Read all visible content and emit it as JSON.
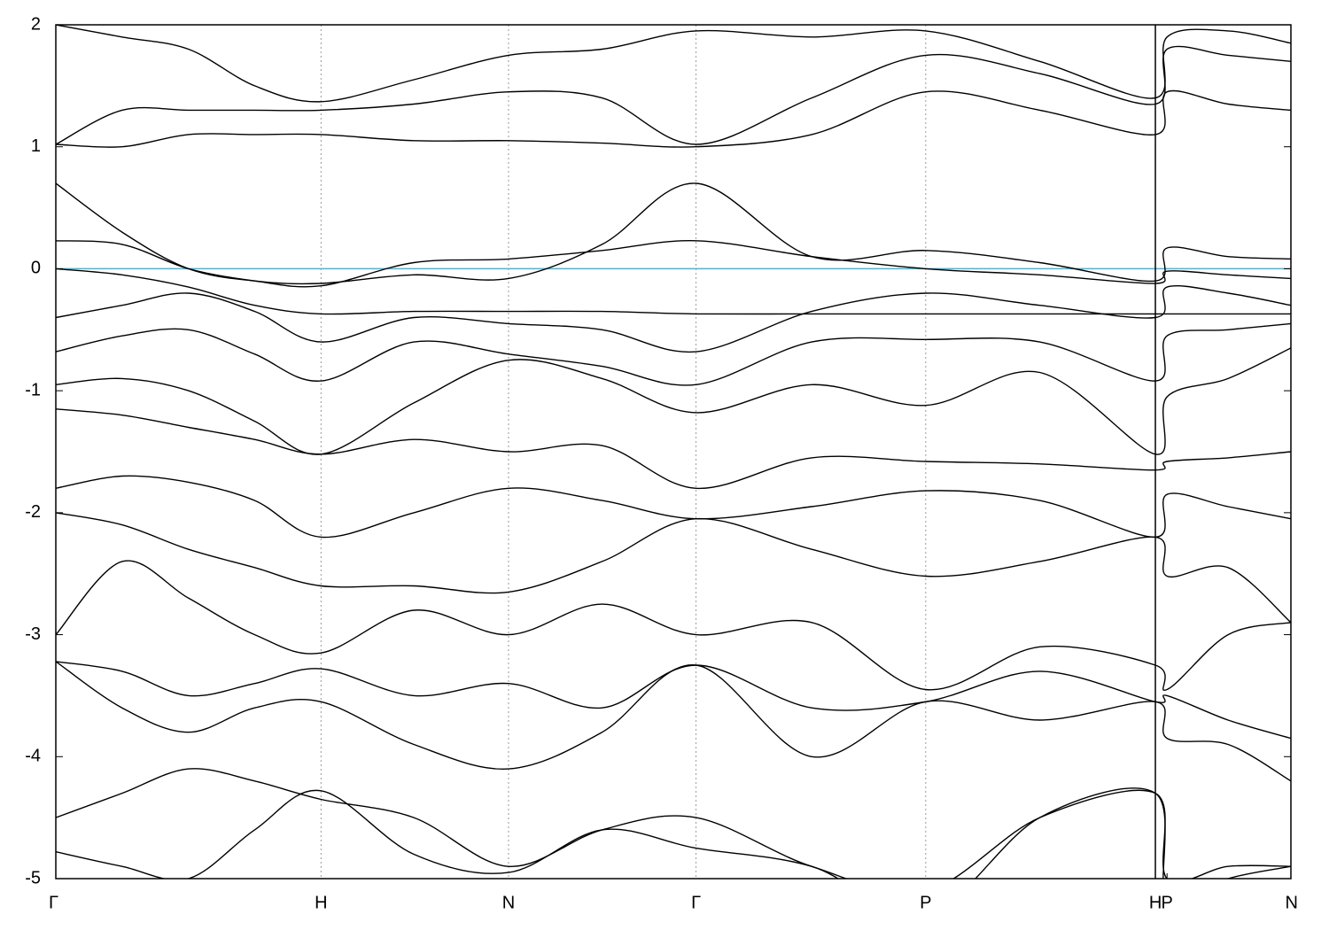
{
  "chart_data": {
    "type": "line",
    "x": [
      0,
      0.25,
      0.5,
      0.75,
      1,
      1.35,
      1.707,
      2.06,
      2.414,
      2.85,
      3.28,
      3.71,
      4.146,
      4.19,
      4.42,
      4.657
    ],
    "xlim": [
      0,
      4.657
    ],
    "xticks": [
      {
        "value": 0,
        "label": "Γ"
      },
      {
        "value": 1,
        "label": "H"
      },
      {
        "value": 1.707,
        "label": "N"
      },
      {
        "value": 2.414,
        "label": "Γ"
      },
      {
        "value": 3.28,
        "label": "P"
      },
      {
        "value": 4.146,
        "label": "H"
      },
      {
        "value": 4.19,
        "label": "P"
      },
      {
        "value": 4.657,
        "label": "N"
      }
    ],
    "ylim": [
      -5,
      2
    ],
    "yticks": [
      2,
      1,
      0,
      -1,
      -2,
      -3,
      -4,
      -5
    ],
    "grid": true,
    "line_color": "#000000",
    "fermi_line": {
      "value": 0,
      "color": "#5aaec8"
    },
    "series": [
      {
        "values": [
          1.02,
          1.0,
          1.1,
          1.1,
          1.1,
          1.05,
          1.05,
          1.03,
          1.0,
          1.1,
          1.45,
          1.3,
          1.1,
          1.45,
          1.35,
          1.3
        ]
      },
      {
        "values": [
          1.02,
          1.3,
          1.3,
          1.3,
          1.3,
          1.35,
          1.45,
          1.4,
          1.02,
          1.4,
          1.75,
          1.6,
          1.35,
          1.8,
          1.75,
          1.7
        ]
      },
      {
        "values": [
          2.0,
          1.9,
          1.8,
          1.5,
          1.37,
          1.55,
          1.75,
          1.8,
          1.95,
          1.9,
          1.95,
          1.7,
          1.4,
          1.9,
          1.95,
          1.85
        ]
      },
      {
        "values": [
          0.7,
          0.3,
          0.0,
          -0.1,
          -0.12,
          -0.05,
          -0.08,
          0.2,
          0.7,
          0.1,
          0.15,
          0.05,
          -0.1,
          0.17,
          0.1,
          0.08
        ]
      },
      {
        "values": [
          0.23,
          0.2,
          0.0,
          -0.1,
          -0.14,
          0.05,
          0.08,
          0.15,
          0.23,
          0.1,
          0.0,
          -0.05,
          -0.12,
          -0.02,
          -0.05,
          -0.08
        ]
      },
      {
        "values": [
          0.0,
          -0.05,
          -0.15,
          -0.3,
          -0.37,
          -0.35,
          -0.35,
          -0.35,
          -0.37,
          -0.37,
          -0.37,
          -0.37,
          -0.37,
          -0.37,
          -0.37,
          -0.37
        ]
      },
      {
        "values": [
          -0.4,
          -0.3,
          -0.2,
          -0.35,
          -0.6,
          -0.4,
          -0.45,
          -0.5,
          -0.68,
          -0.35,
          -0.2,
          -0.3,
          -0.4,
          -0.15,
          -0.2,
          -0.3
        ]
      },
      {
        "values": [
          -0.68,
          -0.55,
          -0.5,
          -0.7,
          -0.92,
          -0.6,
          -0.7,
          -0.8,
          -0.95,
          -0.6,
          -0.58,
          -0.6,
          -0.92,
          -0.55,
          -0.5,
          -0.45
        ]
      },
      {
        "values": [
          -0.95,
          -0.9,
          -1.0,
          -1.25,
          -1.52,
          -1.1,
          -0.75,
          -0.9,
          -1.18,
          -0.95,
          -1.12,
          -0.85,
          -1.52,
          -1.05,
          -0.9,
          -0.65
        ]
      },
      {
        "values": [
          -1.15,
          -1.2,
          -1.3,
          -1.4,
          -1.52,
          -1.4,
          -1.5,
          -1.45,
          -1.8,
          -1.55,
          -1.58,
          -1.6,
          -1.65,
          -1.58,
          -1.55,
          -1.5
        ]
      },
      {
        "values": [
          -1.8,
          -1.7,
          -1.75,
          -1.9,
          -2.2,
          -2.0,
          -1.8,
          -1.9,
          -2.05,
          -1.95,
          -1.82,
          -1.9,
          -2.2,
          -1.85,
          -1.95,
          -2.05
        ]
      },
      {
        "values": [
          -2.0,
          -2.1,
          -2.3,
          -2.45,
          -2.6,
          -2.6,
          -2.65,
          -2.4,
          -2.05,
          -2.3,
          -2.52,
          -2.4,
          -2.2,
          -2.52,
          -2.45,
          -2.9
        ]
      },
      {
        "values": [
          -3.0,
          -2.4,
          -2.7,
          -3.0,
          -3.15,
          -2.8,
          -3.0,
          -2.75,
          -3.0,
          -2.9,
          -3.45,
          -3.1,
          -3.25,
          -3.45,
          -3.0,
          -2.9
        ]
      },
      {
        "values": [
          -3.22,
          -3.3,
          -3.5,
          -3.4,
          -3.28,
          -3.5,
          -3.4,
          -3.6,
          -3.25,
          -3.6,
          -3.55,
          -3.3,
          -3.55,
          -3.5,
          -3.7,
          -3.85
        ]
      },
      {
        "values": [
          -3.22,
          -3.6,
          -3.8,
          -3.6,
          -3.55,
          -3.9,
          -4.1,
          -3.8,
          -3.25,
          -4.0,
          -3.55,
          -3.7,
          -3.55,
          -3.85,
          -3.9,
          -4.2
        ]
      },
      {
        "values": [
          -4.5,
          -4.3,
          -4.1,
          -4.2,
          -4.35,
          -4.5,
          -4.9,
          -4.6,
          -4.5,
          -4.9,
          -5.1,
          -4.5,
          -4.3,
          -5.0,
          -4.9,
          -4.9
        ]
      },
      {
        "values": [
          -4.78,
          -4.9,
          -5.0,
          -4.6,
          -4.28,
          -4.8,
          -4.95,
          -4.6,
          -4.75,
          -4.9,
          -5.3,
          -4.5,
          -4.3,
          -5.2,
          -5.0,
          -4.9
        ]
      }
    ]
  }
}
